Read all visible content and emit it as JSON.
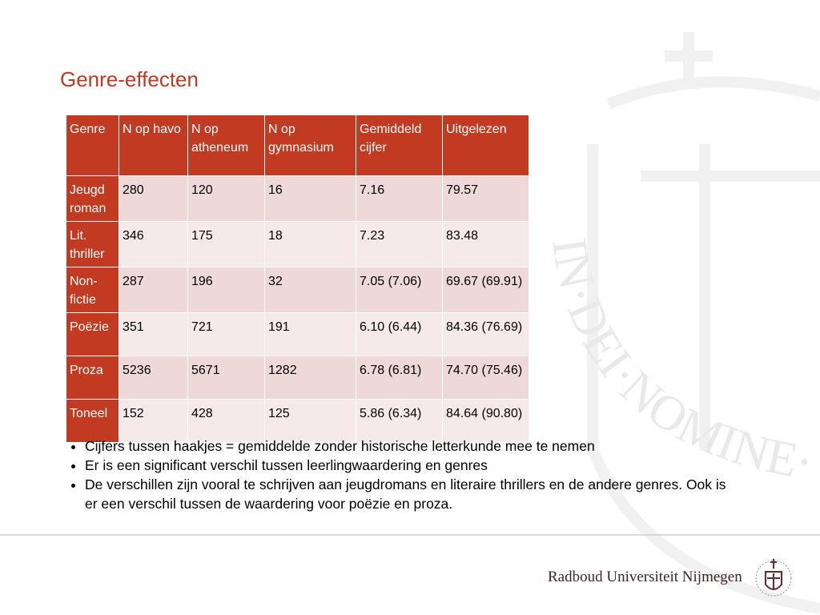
{
  "title": "Genre-effecten",
  "table": {
    "header": [
      "Genre",
      "N op havo",
      "N op atheneum",
      "N op gymnasium",
      "Gemiddeld cijfer",
      "Uitgelezen"
    ],
    "rows": [
      [
        "Jeugd roman",
        "280",
        "120",
        "16",
        "7.16",
        "79.57"
      ],
      [
        "Lit. thriller",
        "346",
        "175",
        "18",
        "7.23",
        "83.48"
      ],
      [
        "Non-fictie",
        "287",
        "196",
        "32",
        "7.05 (7.06)",
        "69.67 (69.91)"
      ],
      [
        "Poëzie",
        "351",
        "721",
        "191",
        "6.10 (6.44)",
        "84.36 (76.69)"
      ],
      [
        "Proza",
        "5236",
        "5671",
        "1282",
        "6.78 (6.81)",
        "74.70 (75.46)"
      ],
      [
        "Toneel",
        "152",
        "428",
        "125",
        "5.86 (6.34)",
        "84.64 (90.80)"
      ]
    ]
  },
  "bullets": [
    "Cijfers tussen haakjes = gemiddelde zonder historische letterkunde mee te nemen",
    "Er is een significant verschil tussen leerlingwaardering en genres",
    "De verschillen zijn vooral te schrijven aan jeugdromans en literaire thrillers en de andere genres. Ook is er een verschil tussen de waardering voor poëzie en proza."
  ],
  "watermark": "IN·DEI·NOMINE·FE",
  "footer": {
    "logo_text": "Radboud Universiteit Nijmegen"
  }
}
